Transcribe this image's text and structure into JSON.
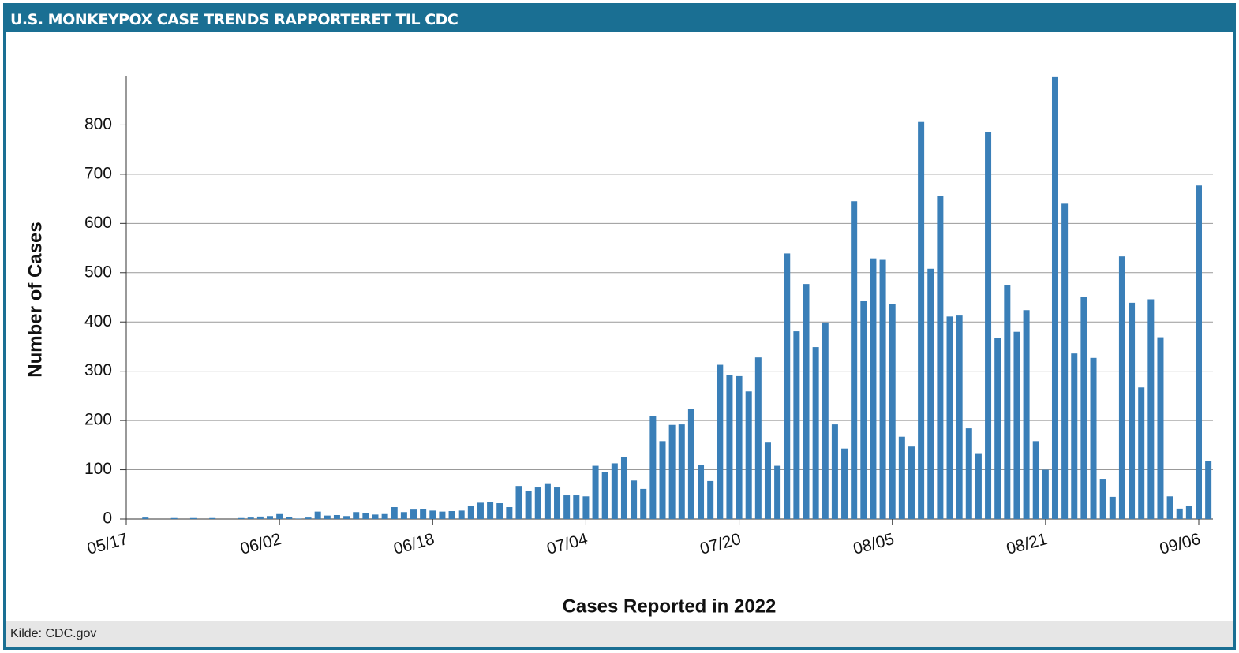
{
  "header": {
    "title": "U.S. MONKEYPOX CASE TRENDS RAPPORTERET TIL CDC"
  },
  "footer": {
    "source": "Kilde: CDC.gov"
  },
  "chart_data": {
    "type": "bar",
    "xlabel": "Cases Reported in 2022",
    "ylabel": "Number of Cases",
    "color": "#3a7fb8",
    "grid": true,
    "categories": [
      "05/17",
      null,
      null,
      null,
      null,
      null,
      null,
      null,
      null,
      null,
      null,
      null,
      null,
      null,
      null,
      null,
      "06/02",
      null,
      null,
      null,
      null,
      null,
      null,
      null,
      null,
      null,
      null,
      null,
      null,
      null,
      null,
      null,
      "06/18",
      null,
      null,
      null,
      null,
      null,
      null,
      null,
      null,
      null,
      null,
      null,
      null,
      null,
      null,
      null,
      "07/04",
      null,
      null,
      null,
      null,
      null,
      null,
      null,
      null,
      null,
      null,
      null,
      null,
      null,
      null,
      null,
      "07/20",
      null,
      null,
      null,
      null,
      null,
      null,
      null,
      null,
      null,
      null,
      null,
      null,
      null,
      null,
      null,
      "08/05",
      null,
      null,
      null,
      null,
      null,
      null,
      null,
      null,
      null,
      null,
      null,
      null,
      null,
      null,
      null,
      "08/21",
      null,
      null,
      null,
      null,
      null,
      null,
      null,
      null,
      null,
      null,
      null,
      null,
      null,
      null,
      null,
      "09/06",
      null
    ],
    "values": [
      0,
      0,
      3,
      0,
      0,
      2,
      0,
      2,
      0,
      2,
      0,
      0,
      2,
      3,
      5,
      6,
      10,
      4,
      1,
      3,
      15,
      7,
      8,
      6,
      14,
      12,
      9,
      10,
      24,
      14,
      19,
      20,
      17,
      15,
      16,
      17,
      27,
      33,
      35,
      32,
      24,
      67,
      57,
      64,
      71,
      64,
      48,
      48,
      46,
      108,
      96,
      113,
      126,
      78,
      61,
      209,
      158,
      191,
      192,
      224,
      110,
      77,
      313,
      292,
      290,
      259,
      328,
      155,
      108,
      539,
      381,
      477,
      349,
      399,
      192,
      143,
      645,
      442,
      529,
      526,
      437,
      167,
      147,
      806,
      508,
      655,
      411,
      413,
      184,
      132,
      785,
      368,
      474,
      380,
      424,
      158,
      100,
      897,
      640,
      336,
      451,
      327,
      80,
      45,
      533,
      439,
      267,
      446,
      369,
      46,
      21,
      26,
      677,
      117
    ],
    "ylim": [
      0,
      900
    ],
    "yticks": [
      0,
      100,
      200,
      300,
      400,
      500,
      600,
      700,
      800
    ]
  }
}
